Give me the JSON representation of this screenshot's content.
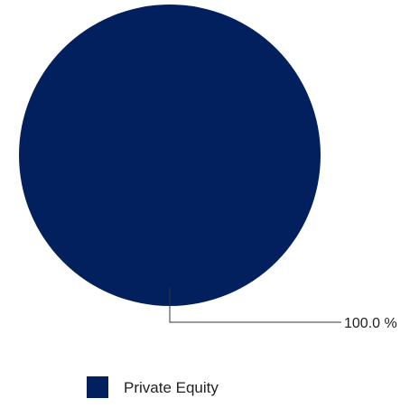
{
  "chart_data": {
    "type": "pie",
    "title": "",
    "categories": [
      "Private Equity"
    ],
    "values": [
      100.0
    ],
    "data_labels": [
      "100.0 %"
    ],
    "colors": [
      "#03205e"
    ],
    "legend": {
      "position": "bottom",
      "entries": [
        "Private Equity"
      ]
    },
    "grid": false
  }
}
